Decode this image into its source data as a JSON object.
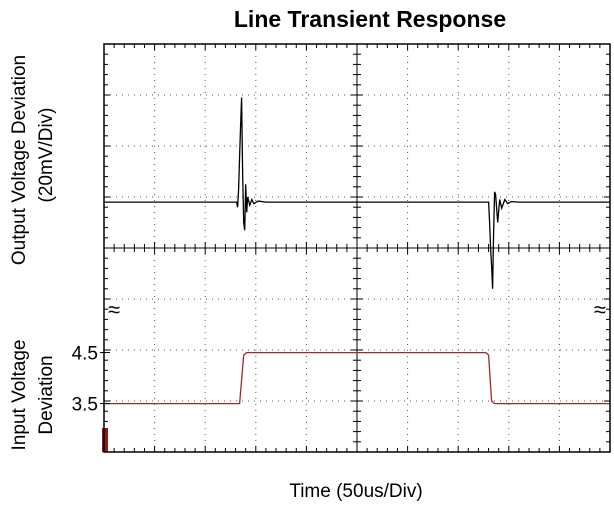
{
  "chart_data": {
    "type": "line",
    "title": "Line Transient Response",
    "xlabel": "Time  (50us/Div)",
    "ylabel_top": [
      "Output Voltage Deviation",
      "(20mV/Div)"
    ],
    "ylabel_bottom": [
      "Input Voltage",
      "Deviation"
    ],
    "break_symbol": "≈",
    "x_divisions": 10,
    "y_divisions": 8,
    "grid": true,
    "series": [
      {
        "panel": "output",
        "color": "#000000",
        "points": [
          [
            0.0,
            0
          ],
          [
            2.62,
            0
          ],
          [
            2.64,
            -0.1
          ],
          [
            2.66,
            0.25
          ],
          [
            2.68,
            0.9
          ],
          [
            2.7,
            1.5
          ],
          [
            2.72,
            2.05
          ],
          [
            2.74,
            0.6
          ],
          [
            2.76,
            -0.4
          ],
          [
            2.78,
            -0.55
          ],
          [
            2.8,
            0.35
          ],
          [
            2.82,
            -0.2
          ],
          [
            2.84,
            0.1
          ],
          [
            2.88,
            -0.06
          ],
          [
            2.92,
            0.05
          ],
          [
            2.96,
            -0.03
          ],
          [
            3.05,
            0.02
          ],
          [
            3.2,
            0
          ],
          [
            7.6,
            0
          ],
          [
            7.62,
            -0.4
          ],
          [
            7.64,
            -0.9
          ],
          [
            7.66,
            -1.25
          ],
          [
            7.68,
            -1.7
          ],
          [
            7.7,
            -0.6
          ],
          [
            7.72,
            0.2
          ],
          [
            7.74,
            0.15
          ],
          [
            7.78,
            -0.4
          ],
          [
            7.82,
            0.05
          ],
          [
            7.86,
            -0.12
          ],
          [
            7.92,
            0.05
          ],
          [
            7.98,
            -0.03
          ],
          [
            8.05,
            0.01
          ],
          [
            8.2,
            0
          ],
          [
            10.0,
            0
          ]
        ]
      },
      {
        "panel": "input",
        "color": "#9e2a2b",
        "points": [
          [
            0.0,
            3.5
          ],
          [
            2.68,
            3.5
          ],
          [
            2.76,
            4.45
          ],
          [
            2.82,
            4.5
          ],
          [
            7.55,
            4.5
          ],
          [
            7.6,
            4.45
          ],
          [
            7.66,
            3.55
          ],
          [
            7.72,
            3.5
          ],
          [
            10.0,
            3.5
          ]
        ]
      }
    ],
    "y_ticks_input": [
      {
        "value": 4.5,
        "label": "4.5"
      },
      {
        "value": 3.5,
        "label": "3.5"
      }
    ],
    "input_ylim": [
      2.5,
      5.5
    ],
    "output_ylim": [
      -3,
      3
    ],
    "xlim": [
      0,
      10
    ]
  }
}
